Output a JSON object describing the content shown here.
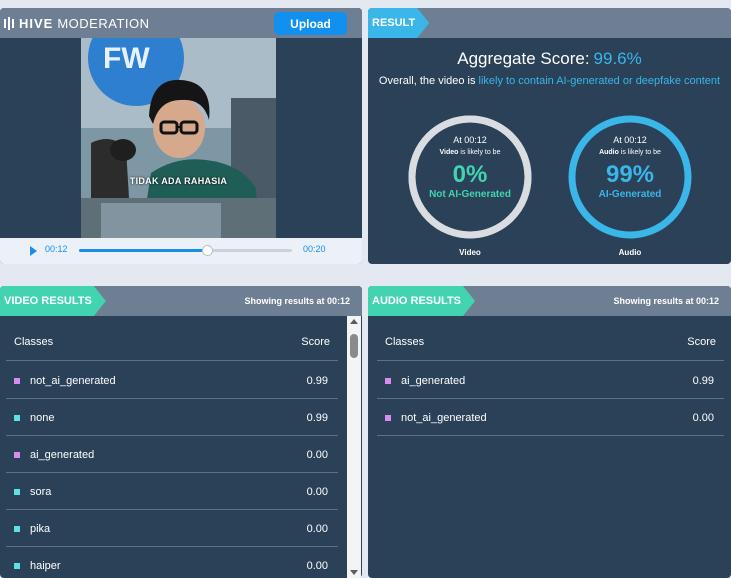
{
  "app": {
    "brand_primary": "HIVE",
    "brand_secondary": "MODERATION",
    "upload_label": "Upload"
  },
  "video_player": {
    "caption": "TIDAK ADA RAHASIA",
    "current_time": "00:12",
    "duration": "00:20",
    "progress_fraction": 0.6,
    "watermark": "FW"
  },
  "result": {
    "tag": "RESULT",
    "aggregate_label": "Aggregate Score:",
    "aggregate_value": "99.6%",
    "summary_prefix": "Overall, the video is ",
    "summary_highlight": "likely to contain AI-generated or deepfake content",
    "rings": [
      {
        "at": "At 00:12",
        "subject": "Video",
        "likely": " is likely to be",
        "percent": "0%",
        "percent_value": 0,
        "verdict": "Not AI-Generated",
        "verdict_color": "#42d4b1",
        "ring_color": "#d9dde2",
        "label": "Video"
      },
      {
        "at": "At 00:12",
        "subject": "Audio",
        "likely": " is likely to be",
        "percent": "99%",
        "percent_value": 99,
        "verdict": "AI-Generated",
        "verdict_color": "#3ab6e8",
        "ring_color": "#3ab6e8",
        "label": "Audio"
      }
    ]
  },
  "video_results": {
    "tag": "VIDEO RESULTS",
    "showing": "Showing results at 00:12",
    "col_classes": "Classes",
    "col_score": "Score",
    "rows": [
      {
        "name": "not_ai_generated",
        "score": "0.99",
        "color": "#d98cf0"
      },
      {
        "name": "none",
        "score": "0.99",
        "color": "#5ee0e6"
      },
      {
        "name": "ai_generated",
        "score": "0.00",
        "color": "#d98cf0"
      },
      {
        "name": "sora",
        "score": "0.00",
        "color": "#5ee0e6"
      },
      {
        "name": "pika",
        "score": "0.00",
        "color": "#5ee0e6"
      },
      {
        "name": "haiper",
        "score": "0.00",
        "color": "#5ee0e6"
      }
    ]
  },
  "audio_results": {
    "tag": "AUDIO RESULTS",
    "showing": "Showing results at 00:12",
    "col_classes": "Classes",
    "col_score": "Score",
    "rows": [
      {
        "name": "ai_generated",
        "score": "0.99",
        "color": "#d98cf0"
      },
      {
        "name": "not_ai_generated",
        "score": "0.00",
        "color": "#d98cf0"
      }
    ]
  }
}
